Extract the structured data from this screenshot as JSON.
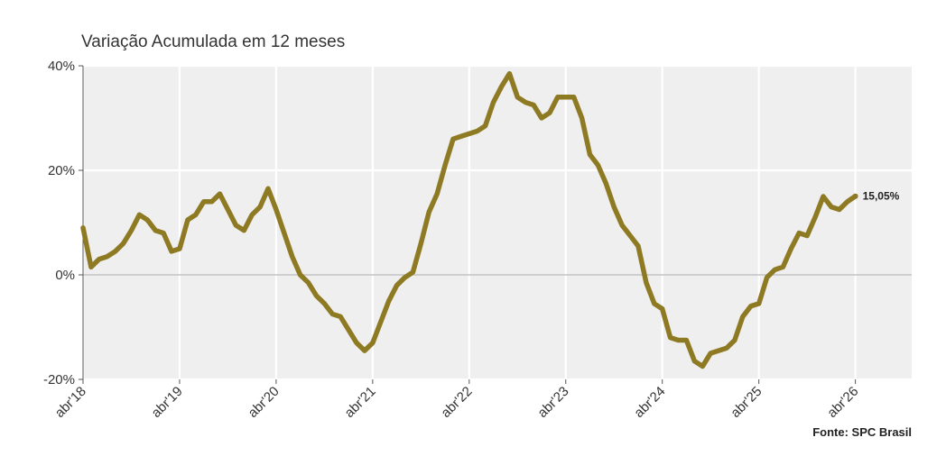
{
  "chart_data": {
    "type": "line",
    "title": "Variação Acumulada em 12 meses",
    "source": "Fonte: SPC Brasil",
    "ylim": [
      -20,
      40
    ],
    "yticks": [
      {
        "value": 40,
        "label": "40%"
      },
      {
        "value": 20,
        "label": "20%"
      },
      {
        "value": 0,
        "label": "0%"
      },
      {
        "value": -20,
        "label": "-20%"
      }
    ],
    "xlim": [
      0,
      103
    ],
    "xticks": [
      {
        "value": 0,
        "label": "abr'18"
      },
      {
        "value": 12,
        "label": "abr'19"
      },
      {
        "value": 24,
        "label": "abr'20"
      },
      {
        "value": 36,
        "label": "abr'21"
      },
      {
        "value": 48,
        "label": "abr'22"
      },
      {
        "value": 60,
        "label": "abr'23"
      },
      {
        "value": 72,
        "label": "abr'24"
      },
      {
        "value": 84,
        "label": "abr'25"
      },
      {
        "value": 96,
        "label": "abr'26"
      }
    ],
    "grid": true,
    "series": [
      {
        "color": "#8f7a24",
        "end_label": "15,05%",
        "values": [
          9.0,
          1.5,
          3.0,
          3.5,
          4.5,
          6.0,
          8.5,
          11.5,
          10.5,
          8.5,
          8.0,
          4.5,
          5.0,
          10.5,
          11.5,
          14.0,
          14.0,
          15.5,
          12.5,
          9.5,
          8.5,
          11.5,
          13.0,
          16.5,
          12.5,
          8.0,
          3.5,
          0.0,
          -1.5,
          -4.0,
          -5.5,
          -7.5,
          -8.0,
          -10.5,
          -13.0,
          -14.5,
          -13.0,
          -9.0,
          -5.0,
          -2.0,
          -0.5,
          0.5,
          6.0,
          12.0,
          15.5,
          21.0,
          26.0,
          26.5,
          27.0,
          27.5,
          28.5,
          33.0,
          36.0,
          38.5,
          34.0,
          33.0,
          32.5,
          30.0,
          31.0,
          34.0,
          34.0,
          34.0,
          30.0,
          23.0,
          21.0,
          17.5,
          13.0,
          9.5,
          7.5,
          5.5,
          -1.5,
          -5.5,
          -6.5,
          -12.0,
          -12.5,
          -12.5,
          -16.5,
          -17.5,
          -15.0,
          -14.5,
          -14.0,
          -12.5,
          -8.0,
          -6.0,
          -5.5,
          -0.5,
          1.0,
          1.5,
          5.0,
          8.0,
          7.5,
          11.0,
          15.0,
          13.0,
          12.5,
          14.0,
          15.05
        ]
      }
    ]
  }
}
